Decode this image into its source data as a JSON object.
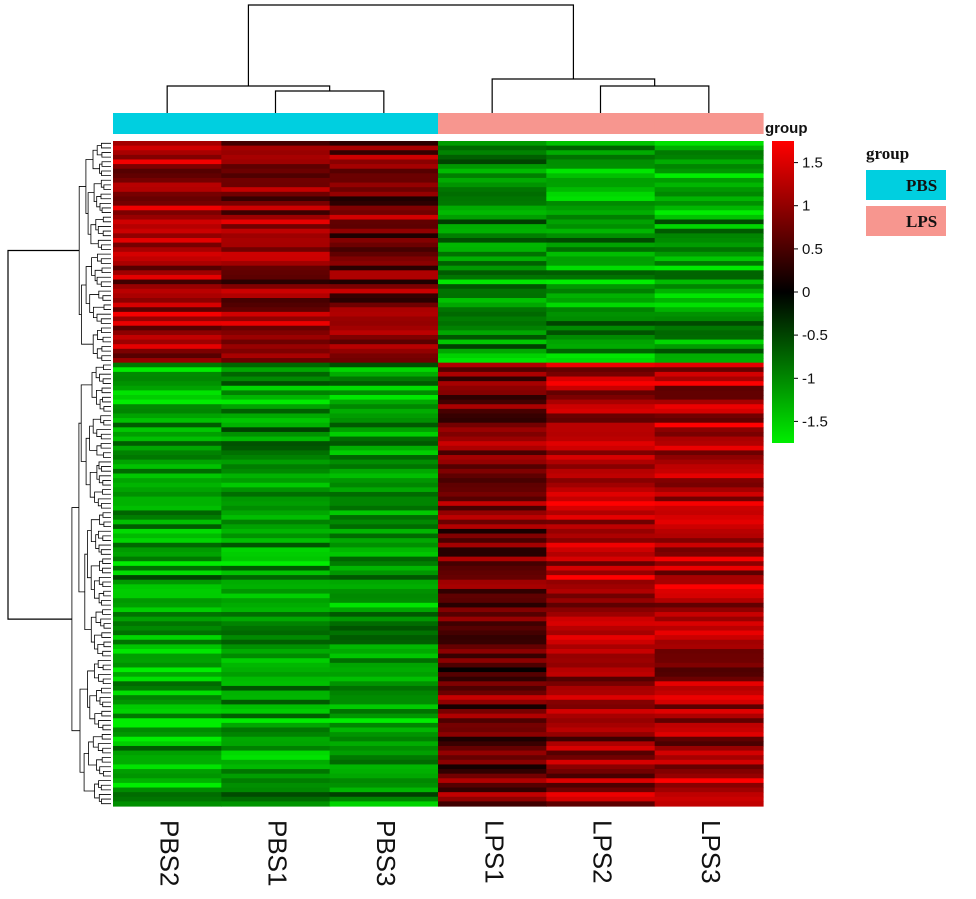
{
  "chart_data": {
    "type": "heatmap",
    "title": "",
    "columns": [
      "PBS2",
      "PBS1",
      "PBS3",
      "LPS1",
      "LPS2",
      "LPS3"
    ],
    "column_groups": [
      "PBS",
      "PBS",
      "PBS",
      "LPS",
      "LPS",
      "LPS"
    ],
    "row_count": 144,
    "cluster_a_rows": 48,
    "value_range": [
      -1.75,
      1.75
    ],
    "colorbar": {
      "title": "group",
      "ticks": [
        1.5,
        1,
        0.5,
        0,
        -0.5,
        -1,
        -1.5
      ],
      "tick_labels": [
        "1.5",
        "1",
        "0.5",
        "0",
        "-0.5",
        "-1",
        "-1.5"
      ],
      "colors": {
        "low": "#00ee00",
        "mid": "#000000",
        "high": "#ff0000"
      }
    },
    "legend": {
      "title": "group",
      "placement": "right",
      "items": [
        {
          "label": "PBS",
          "color": "#00cfe0"
        },
        {
          "label": "LPS",
          "color": "#f7968f"
        }
      ]
    },
    "cluster_means": {
      "upregulated_in_PBS": [
        1.05,
        0.95,
        0.85,
        -1.05,
        -1.15,
        -1.2
      ],
      "upregulated_in_LPS": [
        -1.2,
        -1.1,
        -1.1,
        0.75,
        1.15,
        1.2
      ]
    }
  }
}
